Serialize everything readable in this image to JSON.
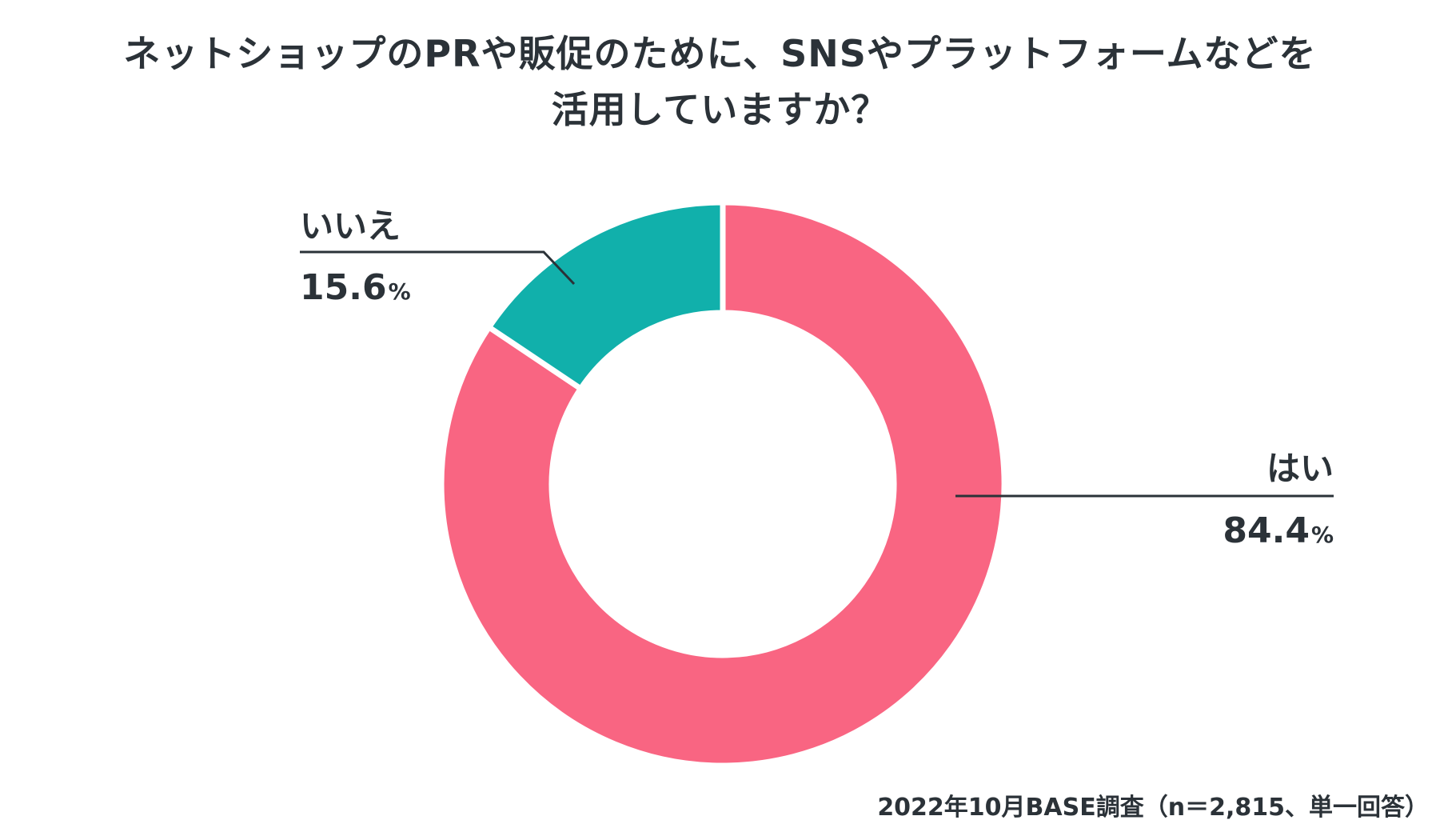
{
  "chart_data": {
    "type": "pie",
    "title_lines": [
      "ネットショップのPRや販促のために、SNSやプラットフォームなどを",
      "活用していますか？"
    ],
    "slices": [
      {
        "label": "はい",
        "value": 84.4,
        "value_text": "84.4",
        "unit": "%",
        "color": "#f96582"
      },
      {
        "label": "いいえ",
        "value": 15.6,
        "value_text": "15.6",
        "unit": "%",
        "color": "#11b0ab"
      }
    ],
    "donut": true,
    "source": "2022年10月BASE調査（n＝2,815、単一回答）"
  }
}
